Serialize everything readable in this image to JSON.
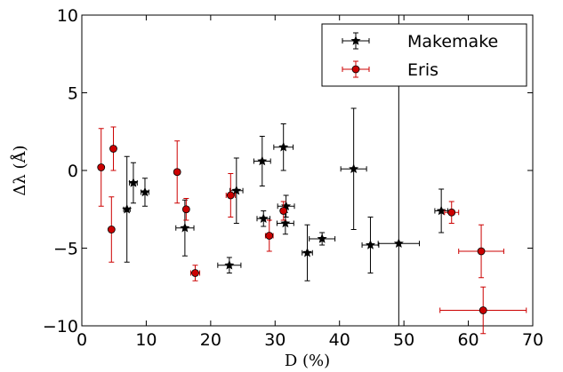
{
  "chart_data": {
    "type": "scatter",
    "xlabel": "D (%)",
    "ylabel": "Δλ (Å)",
    "xlim": [
      0,
      70
    ],
    "ylim": [
      -10,
      10
    ],
    "xticks": [
      0,
      10,
      20,
      30,
      40,
      50,
      60,
      70
    ],
    "yticks": [
      -10,
      -5,
      0,
      5,
      10
    ],
    "grid": false,
    "legend_position": "top-right",
    "annotations": [
      {
        "type": "vline",
        "x": 49.2,
        "color": "#000000"
      }
    ],
    "series": [
      {
        "name": "Makemake",
        "color": "#000000",
        "marker": "star",
        "points": [
          {
            "x": 7.0,
            "y": -2.5,
            "xerr": 0.5,
            "yerr": 3.4
          },
          {
            "x": 8.0,
            "y": -0.8,
            "xerr": 0.6,
            "yerr": 1.3
          },
          {
            "x": 9.8,
            "y": -1.4,
            "xerr": 0.6,
            "yerr": 0.9
          },
          {
            "x": 16.0,
            "y": -3.7,
            "xerr": 1.4,
            "yerr": 1.8
          },
          {
            "x": 22.9,
            "y": -6.1,
            "xerr": 1.8,
            "yerr": 0.5
          },
          {
            "x": 24.0,
            "y": -1.3,
            "xerr": 1.0,
            "yerr": 2.1
          },
          {
            "x": 28.0,
            "y": 0.6,
            "xerr": 1.3,
            "yerr": 1.6
          },
          {
            "x": 28.2,
            "y": -3.1,
            "xerr": 1.0,
            "yerr": 0.5
          },
          {
            "x": 31.3,
            "y": 1.5,
            "xerr": 1.5,
            "yerr": 1.5
          },
          {
            "x": 31.6,
            "y": -3.4,
            "xerr": 1.3,
            "yerr": 0.7
          },
          {
            "x": 31.7,
            "y": -2.3,
            "xerr": 1.3,
            "yerr": 0.7
          },
          {
            "x": 35.0,
            "y": -5.3,
            "xerr": 0.8,
            "yerr": 1.8
          },
          {
            "x": 37.3,
            "y": -4.4,
            "xerr": 2.0,
            "yerr": 0.4
          },
          {
            "x": 42.2,
            "y": 0.1,
            "xerr": 2.0,
            "yerr": 3.9
          },
          {
            "x": 44.8,
            "y": -4.8,
            "xerr": 1.3,
            "yerr": 1.8
          },
          {
            "x": 49.2,
            "y": -4.7,
            "xerr": 3.2,
            "yerr": 0.0
          },
          {
            "x": 55.8,
            "y": -2.6,
            "xerr": 1.0,
            "yerr": 1.4
          }
        ]
      },
      {
        "name": "Eris",
        "color": "#cc0000",
        "marker": "circle",
        "points": [
          {
            "x": 3.0,
            "y": 0.2,
            "xerr": 0.3,
            "yerr": 2.5
          },
          {
            "x": 4.6,
            "y": -3.8,
            "xerr": 0.3,
            "yerr": 2.1
          },
          {
            "x": 4.9,
            "y": 1.4,
            "xerr": 0.3,
            "yerr": 1.4
          },
          {
            "x": 14.8,
            "y": -0.1,
            "xerr": 0.4,
            "yerr": 2.0
          },
          {
            "x": 16.2,
            "y": -2.5,
            "xerr": 0.4,
            "yerr": 0.7
          },
          {
            "x": 17.6,
            "y": -6.6,
            "xerr": 0.7,
            "yerr": 0.5
          },
          {
            "x": 23.1,
            "y": -1.6,
            "xerr": 0.7,
            "yerr": 1.4
          },
          {
            "x": 29.1,
            "y": -4.2,
            "xerr": 0.6,
            "yerr": 1.0
          },
          {
            "x": 31.3,
            "y": -2.6,
            "xerr": 0.4,
            "yerr": 0.6
          },
          {
            "x": 57.4,
            "y": -2.7,
            "xerr": 1.1,
            "yerr": 0.7
          },
          {
            "x": 62.0,
            "y": -5.2,
            "xerr": 3.5,
            "yerr": 1.7
          },
          {
            "x": 62.3,
            "y": -9.0,
            "xerr": 6.7,
            "yerr": 1.5
          }
        ]
      }
    ]
  }
}
